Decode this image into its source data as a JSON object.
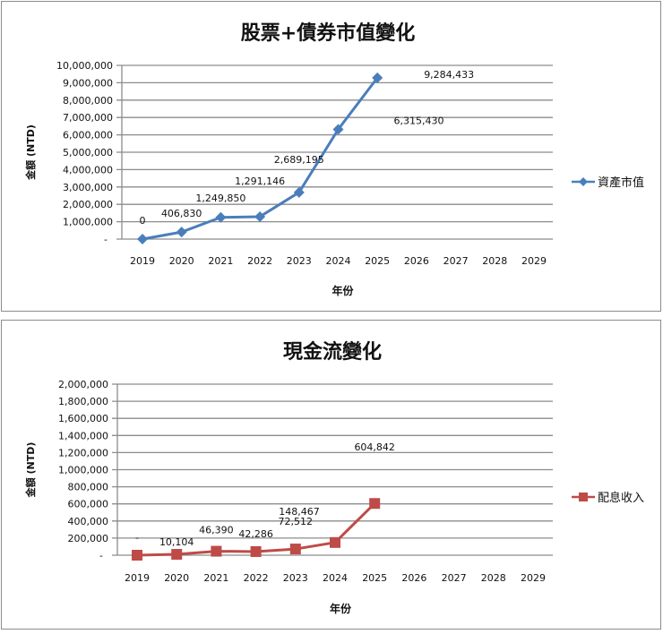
{
  "chart_data": [
    {
      "type": "line",
      "title": "股票+債券市值變化",
      "xlabel": "年份",
      "ylabel": "金額 (NTD)",
      "categories": [
        "2019",
        "2020",
        "2021",
        "2022",
        "2023",
        "2024",
        "2025",
        "2026",
        "2027",
        "2028",
        "2029"
      ],
      "series": [
        {
          "name": "資產市值",
          "color": "#4a7ebb",
          "marker": "diamond",
          "values": [
            0,
            406830,
            1249850,
            1291146,
            2689195,
            6315430,
            9284433,
            null,
            null,
            null,
            null
          ],
          "labels": [
            "0",
            "406,830",
            "1,249,850",
            "1,291,146",
            "2,689,195",
            "6,315,430",
            "9,284,433"
          ]
        }
      ],
      "ylim": [
        0,
        10000000
      ],
      "yticks": [
        "-",
        "1,000,000",
        "2,000,000",
        "3,000,000",
        "4,000,000",
        "5,000,000",
        "6,000,000",
        "7,000,000",
        "8,000,000",
        "9,000,000",
        "10,000,000"
      ],
      "grid": true,
      "legend_position": "right"
    },
    {
      "type": "line",
      "title": "現金流變化",
      "xlabel": "年份",
      "ylabel": "金額 (NTD)",
      "categories": [
        "2019",
        "2020",
        "2021",
        "2022",
        "2023",
        "2024",
        "2025",
        "2026",
        "2027",
        "2028",
        "2029"
      ],
      "series": [
        {
          "name": "配息收入",
          "color": "#be4b48",
          "marker": "square",
          "values": [
            0,
            10104,
            46390,
            42286,
            72512,
            148467,
            604842,
            null,
            null,
            null,
            null
          ],
          "labels": [
            "-",
            "10,104",
            "46,390",
            "42,286",
            "72,512",
            "148,467",
            "604,842"
          ]
        }
      ],
      "ylim": [
        0,
        2000000
      ],
      "yticks": [
        "-",
        "200,000",
        "400,000",
        "600,000",
        "800,000",
        "1,000,000",
        "1,200,000",
        "1,400,000",
        "1,600,000",
        "1,800,000",
        "2,000,000"
      ],
      "grid": true,
      "legend_position": "right"
    }
  ]
}
